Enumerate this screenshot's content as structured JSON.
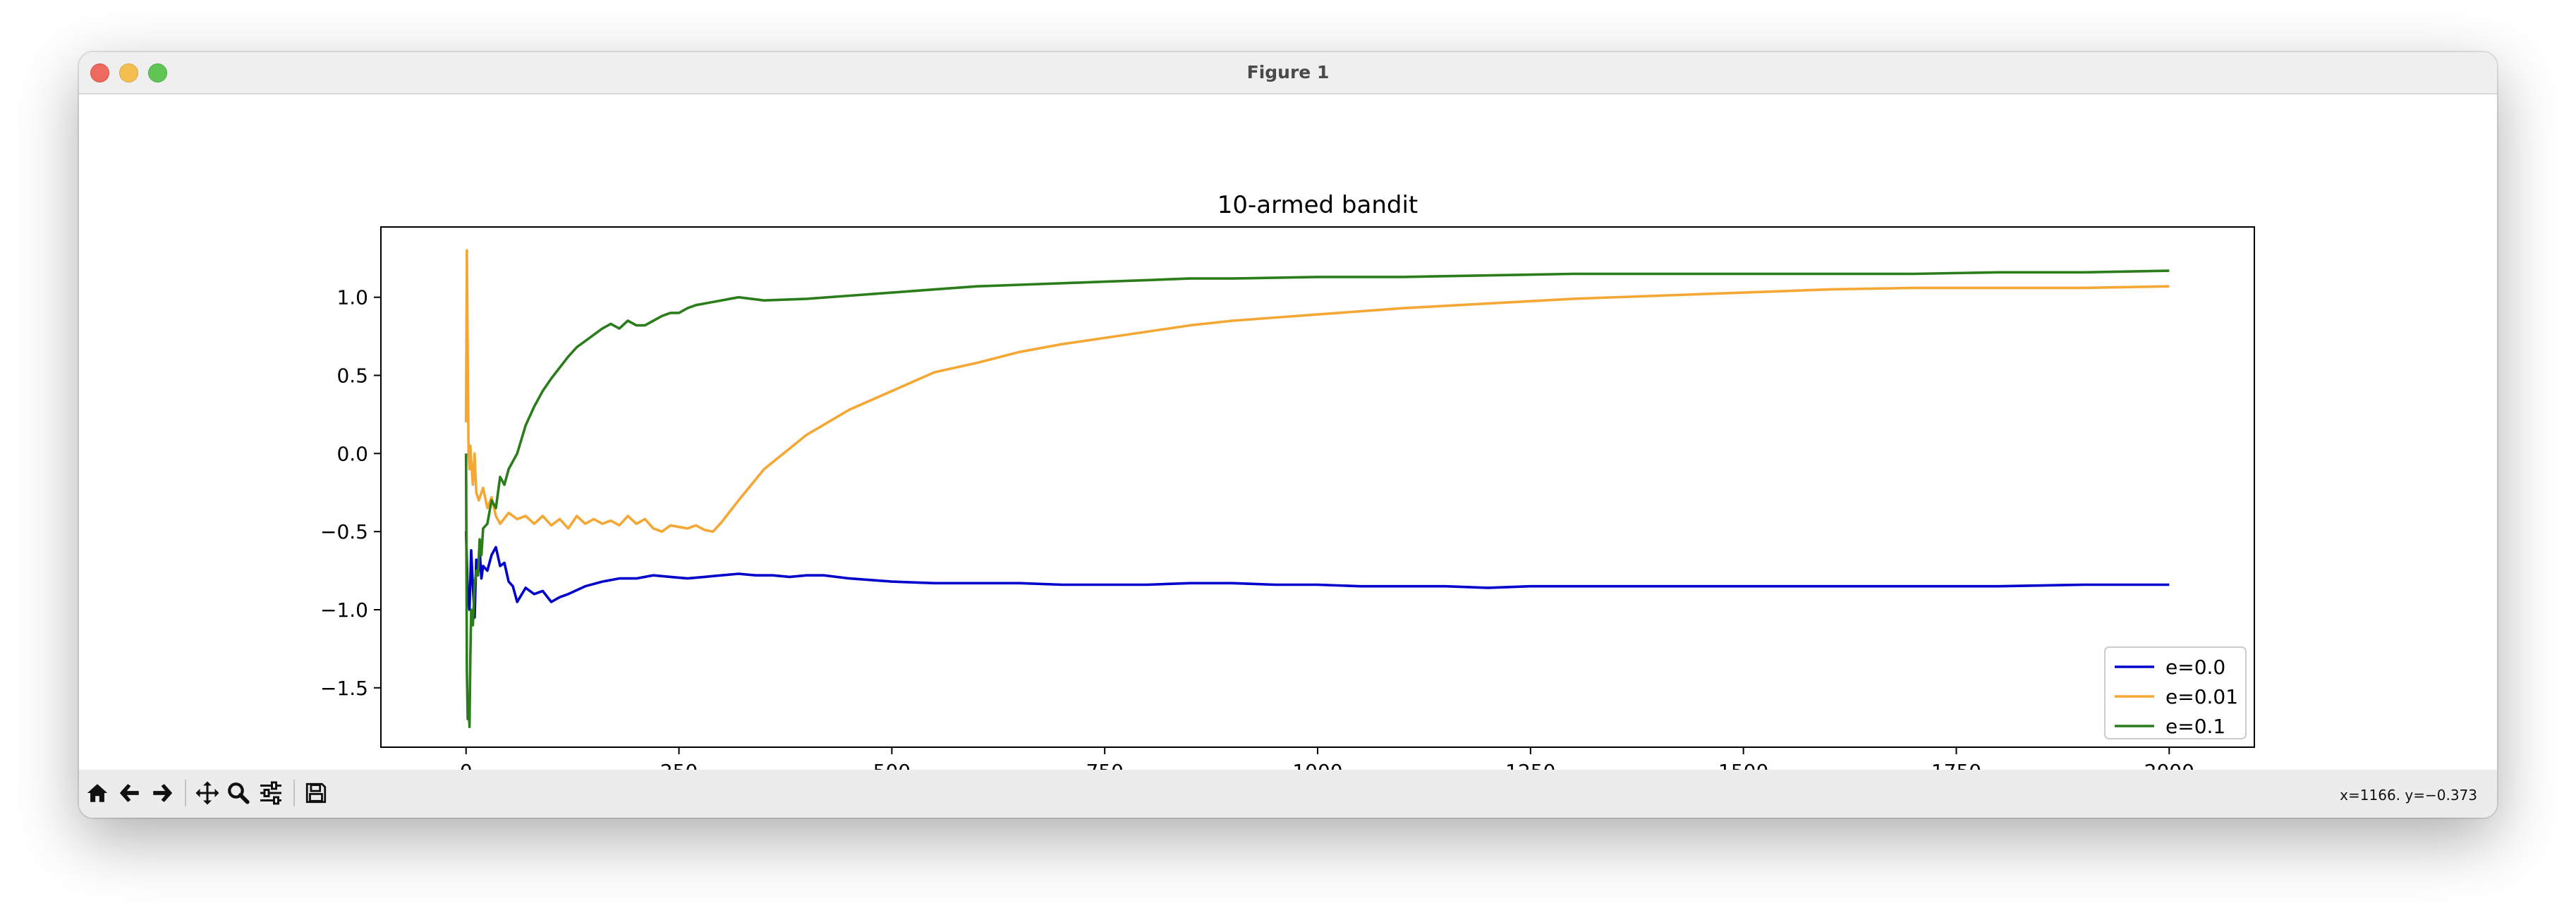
{
  "window": {
    "title": "Figure 1"
  },
  "toolbar": {
    "buttons": [
      {
        "name": "home-button",
        "icon": "home-icon"
      },
      {
        "name": "back-button",
        "icon": "arrow-left-icon"
      },
      {
        "name": "forward-button",
        "icon": "arrow-right-icon"
      },
      {
        "name": "pan-button",
        "icon": "move-icon"
      },
      {
        "name": "zoom-button",
        "icon": "magnifier-icon"
      },
      {
        "name": "configure-subplots-button",
        "icon": "sliders-icon"
      },
      {
        "name": "save-button",
        "icon": "floppy-disk-icon"
      }
    ],
    "coords": "x=1166. y=−0.373"
  },
  "chart_data": {
    "type": "line",
    "title": "10-armed bandit",
    "xlabel": "",
    "ylabel": "",
    "xlim": [
      -100,
      2100
    ],
    "ylim": [
      -1.88,
      1.45
    ],
    "xticks": [
      0,
      250,
      500,
      750,
      1000,
      1250,
      1500,
      1750,
      2000
    ],
    "xtick_labels": [
      "0",
      "250",
      "500",
      "750",
      "1000",
      "1250",
      "1500",
      "1750",
      "2000"
    ],
    "yticks": [
      -1.5,
      -1.0,
      -0.5,
      0.0,
      0.5,
      1.0
    ],
    "ytick_labels": [
      "−1.5",
      "−1.0",
      "−0.5",
      "0.0",
      "0.5",
      "1.0"
    ],
    "grid": false,
    "legend_position": "bottom-right",
    "series": [
      {
        "name": "e=0.0",
        "color": "#0000cc",
        "x": [
          0,
          2,
          4,
          6,
          8,
          10,
          12,
          14,
          16,
          18,
          20,
          25,
          30,
          35,
          40,
          45,
          50,
          55,
          60,
          70,
          80,
          90,
          100,
          110,
          120,
          140,
          160,
          180,
          200,
          220,
          240,
          260,
          280,
          300,
          320,
          340,
          360,
          380,
          400,
          420,
          450,
          500,
          550,
          600,
          650,
          700,
          750,
          800,
          850,
          900,
          950,
          1000,
          1050,
          1100,
          1150,
          1200,
          1250,
          1300,
          1400,
          1500,
          1600,
          1700,
          1800,
          1900,
          1950,
          2000
        ],
        "y": [
          -0.5,
          -0.9,
          -1.0,
          -0.62,
          -0.85,
          -1.05,
          -0.68,
          -0.78,
          -0.62,
          -0.8,
          -0.72,
          -0.75,
          -0.65,
          -0.6,
          -0.72,
          -0.7,
          -0.82,
          -0.85,
          -0.95,
          -0.86,
          -0.9,
          -0.88,
          -0.95,
          -0.92,
          -0.9,
          -0.85,
          -0.82,
          -0.8,
          -0.8,
          -0.78,
          -0.79,
          -0.8,
          -0.79,
          -0.78,
          -0.77,
          -0.78,
          -0.78,
          -0.79,
          -0.78,
          -0.78,
          -0.8,
          -0.82,
          -0.83,
          -0.83,
          -0.83,
          -0.84,
          -0.84,
          -0.84,
          -0.83,
          -0.83,
          -0.84,
          -0.84,
          -0.85,
          -0.85,
          -0.85,
          -0.86,
          -0.85,
          -0.85,
          -0.85,
          -0.85,
          -0.85,
          -0.85,
          -0.85,
          -0.84,
          -0.84,
          -0.84
        ]
      },
      {
        "name": "e=0.01",
        "color": "#f5a733",
        "x": [
          0,
          1,
          2,
          3,
          4,
          5,
          6,
          8,
          10,
          12,
          15,
          20,
          25,
          30,
          35,
          40,
          50,
          60,
          70,
          80,
          90,
          100,
          110,
          120,
          130,
          140,
          150,
          160,
          170,
          180,
          190,
          200,
          210,
          220,
          230,
          240,
          250,
          260,
          270,
          280,
          290,
          300,
          320,
          350,
          400,
          450,
          500,
          550,
          600,
          650,
          700,
          750,
          800,
          850,
          900,
          950,
          1000,
          1100,
          1200,
          1300,
          1400,
          1500,
          1600,
          1700,
          1800,
          1900,
          2000
        ],
        "y": [
          0.2,
          1.3,
          0.6,
          0.0,
          -0.1,
          0.05,
          -0.05,
          -0.2,
          0.0,
          -0.25,
          -0.3,
          -0.22,
          -0.35,
          -0.28,
          -0.4,
          -0.45,
          -0.38,
          -0.42,
          -0.4,
          -0.45,
          -0.4,
          -0.46,
          -0.42,
          -0.48,
          -0.4,
          -0.45,
          -0.42,
          -0.45,
          -0.43,
          -0.46,
          -0.4,
          -0.45,
          -0.42,
          -0.48,
          -0.5,
          -0.46,
          -0.47,
          -0.48,
          -0.46,
          -0.49,
          -0.5,
          -0.44,
          -0.3,
          -0.1,
          0.12,
          0.28,
          0.4,
          0.52,
          0.58,
          0.65,
          0.7,
          0.74,
          0.78,
          0.82,
          0.85,
          0.87,
          0.89,
          0.93,
          0.96,
          0.99,
          1.01,
          1.03,
          1.05,
          1.06,
          1.06,
          1.06,
          1.07
        ]
      },
      {
        "name": "e=0.1",
        "color": "#2a7d1a",
        "x": [
          0,
          1,
          2,
          3,
          4,
          5,
          6,
          8,
          10,
          12,
          14,
          16,
          18,
          20,
          25,
          30,
          35,
          40,
          45,
          50,
          60,
          70,
          80,
          90,
          100,
          110,
          120,
          130,
          140,
          150,
          160,
          170,
          180,
          190,
          200,
          210,
          220,
          230,
          240,
          250,
          260,
          270,
          280,
          290,
          300,
          320,
          350,
          400,
          450,
          500,
          550,
          600,
          650,
          700,
          750,
          800,
          850,
          900,
          1000,
          1100,
          1200,
          1300,
          1400,
          1500,
          1600,
          1700,
          1800,
          1900,
          2000
        ],
        "y": [
          0.0,
          -1.4,
          -1.7,
          -1.55,
          -1.75,
          -1.3,
          -1.0,
          -1.1,
          -0.85,
          -0.75,
          -0.78,
          -0.55,
          -0.65,
          -0.48,
          -0.45,
          -0.3,
          -0.35,
          -0.15,
          -0.2,
          -0.1,
          0.0,
          0.18,
          0.3,
          0.4,
          0.48,
          0.55,
          0.62,
          0.68,
          0.72,
          0.76,
          0.8,
          0.83,
          0.8,
          0.85,
          0.82,
          0.82,
          0.85,
          0.88,
          0.9,
          0.9,
          0.93,
          0.95,
          0.96,
          0.97,
          0.98,
          1.0,
          0.98,
          0.99,
          1.01,
          1.03,
          1.05,
          1.07,
          1.08,
          1.09,
          1.1,
          1.11,
          1.12,
          1.12,
          1.13,
          1.13,
          1.14,
          1.15,
          1.15,
          1.15,
          1.15,
          1.15,
          1.16,
          1.16,
          1.17
        ]
      }
    ]
  }
}
